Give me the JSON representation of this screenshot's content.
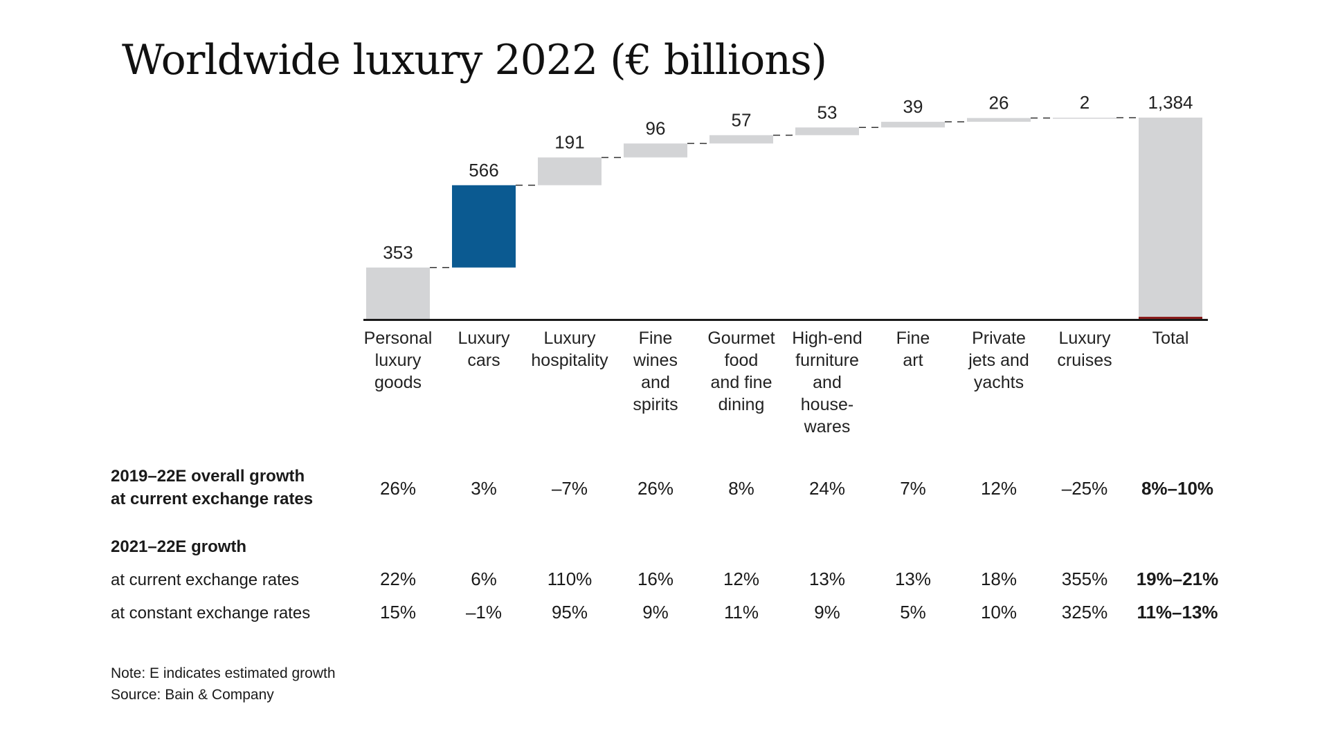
{
  "chart_data": {
    "type": "bar",
    "title": "Worldwide luxury 2022 (€ billions)",
    "categories": [
      "Personal luxury goods",
      "Luxury cars",
      "Luxury hospitality",
      "Fine wines and spirits",
      "Gourmet food and fine dining",
      "High-end furniture and housewares",
      "Fine art",
      "Private jets and yachts",
      "Luxury cruises",
      "Total"
    ],
    "category_lines": [
      [
        "Personal",
        "luxury",
        "goods"
      ],
      [
        "Luxury",
        "cars"
      ],
      [
        "Luxury",
        "hospitality"
      ],
      [
        "Fine",
        "wines",
        "and",
        "spirits"
      ],
      [
        "Gourmet",
        "food",
        "and fine",
        "dining"
      ],
      [
        "High-end",
        "furniture",
        "and",
        "house-",
        "wares"
      ],
      [
        "Fine",
        "art"
      ],
      [
        "Private",
        "jets and",
        "yachts"
      ],
      [
        "Luxury",
        "cruises"
      ],
      [
        "Total"
      ]
    ],
    "values": [
      353,
      566,
      191,
      96,
      57,
      53,
      39,
      26,
      2,
      1384
    ],
    "value_labels": [
      "353",
      "566",
      "191",
      "96",
      "57",
      "53",
      "39",
      "26",
      "2",
      "1,384"
    ],
    "waterfall": true,
    "highlight_index": 1,
    "ylim": [
      0,
      1384
    ],
    "colors": {
      "bar": "#d3d4d6",
      "highlight": "#0b5a91",
      "baseline": "#1a1a1a",
      "connector": "#333333",
      "total_base": "#8b1c1c"
    }
  },
  "table": {
    "row1": {
      "label_lines": [
        "2019–22E overall growth",
        "at current exchange rates"
      ],
      "values": [
        "26%",
        "3%",
        "–7%",
        "26%",
        "8%",
        "24%",
        "7%",
        "12%",
        "–25%",
        "8%–10%"
      ]
    },
    "header2": "2021–22E growth",
    "row2": {
      "label": "at current exchange rates",
      "values": [
        "22%",
        "6%",
        "110%",
        "16%",
        "12%",
        "13%",
        "13%",
        "18%",
        "355%",
        "19%–21%"
      ]
    },
    "row3": {
      "label": "at constant exchange rates",
      "values": [
        "15%",
        "–1%",
        "95%",
        "9%",
        "11%",
        "9%",
        "5%",
        "10%",
        "325%",
        "11%–13%"
      ]
    }
  },
  "notes": {
    "note": "Note: E indicates estimated growth",
    "source": "Source: Bain & Company"
  }
}
